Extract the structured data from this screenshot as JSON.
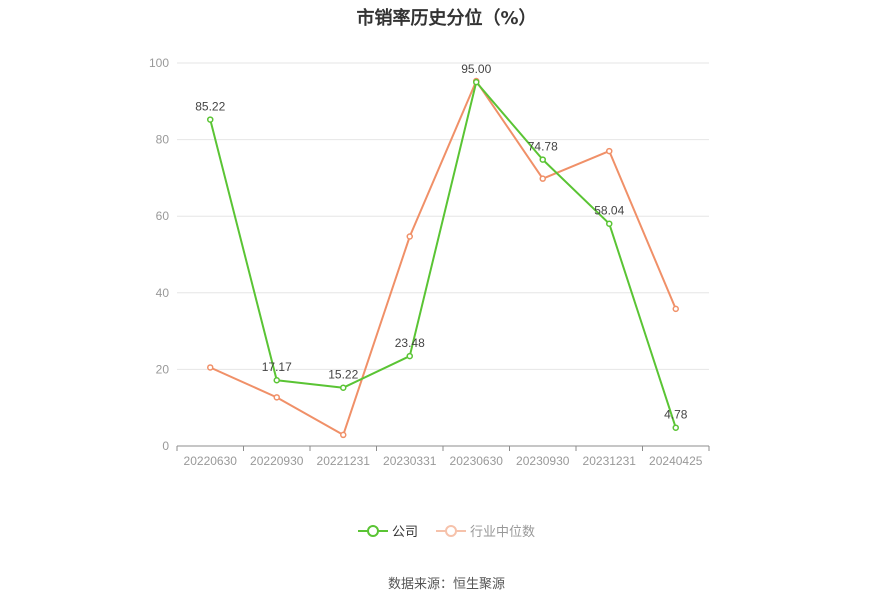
{
  "chart_data": {
    "type": "line",
    "title": "市销率历史分位（%）",
    "categories": [
      "20220630",
      "20220930",
      "20221231",
      "20230331",
      "20230630",
      "20230930",
      "20231231",
      "20240425"
    ],
    "ylim": [
      0,
      100
    ],
    "yticks": [
      0,
      20,
      40,
      60,
      80,
      100
    ],
    "grid": true,
    "legend_position": "bottom",
    "series": [
      {
        "name": "公司",
        "color": "#5ac434",
        "values": [
          85.22,
          17.17,
          15.22,
          23.48,
          95.0,
          74.78,
          58.04,
          4.78
        ],
        "labels": [
          "85.22",
          "17.17",
          "15.22",
          "23.48",
          "95.00",
          "74.78",
          "58.04",
          "4.78"
        ]
      },
      {
        "name": "行业中位数",
        "color": "#f09068",
        "values": [
          20.5,
          12.7,
          2.9,
          54.7,
          95.3,
          69.8,
          77.0,
          35.8
        ]
      }
    ],
    "source": "数据来源：恒生聚源"
  }
}
